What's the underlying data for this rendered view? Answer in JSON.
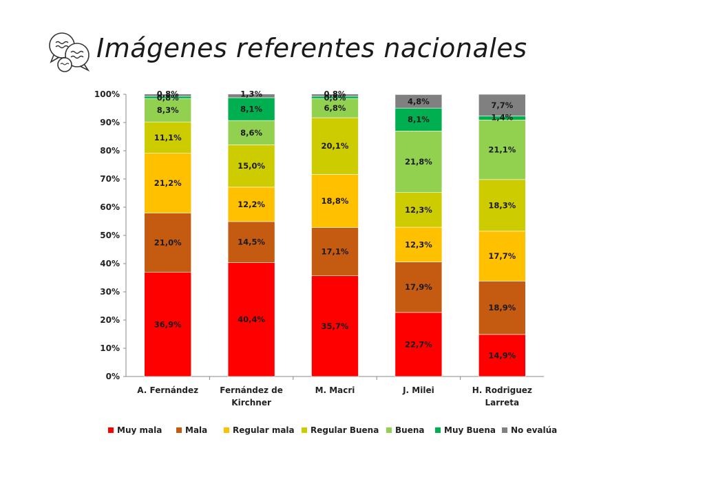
{
  "page": {
    "title": "Imágenes referentes nacionales",
    "logo_icon": "speech-bubbles-icon"
  },
  "chart_data": {
    "type": "bar",
    "stacked": true,
    "percent_stacked": true,
    "title": "",
    "xlabel": "",
    "ylabel": "",
    "ylim": [
      0,
      100
    ],
    "yticks": [
      "0%",
      "10%",
      "20%",
      "30%",
      "40%",
      "50%",
      "60%",
      "70%",
      "80%",
      "90%",
      "100%"
    ],
    "categories": [
      [
        "A. Fernández"
      ],
      [
        "Fernández de",
        "Kirchner"
      ],
      [
        "M. Macri"
      ],
      [
        "J. Milei"
      ],
      [
        "H. Rodriguez",
        "Larreta"
      ]
    ],
    "legend_position": "bottom",
    "grid": false,
    "series": [
      {
        "name": "Muy mala",
        "color": "#ff0000",
        "values": [
          36.9,
          40.4,
          35.7,
          22.7,
          14.9
        ],
        "labels": [
          "36,9%",
          "40,4%",
          "35,7%",
          "22,7%",
          "14,9%"
        ]
      },
      {
        "name": "Mala",
        "color": "#c55a11",
        "values": [
          21.0,
          14.5,
          17.1,
          17.9,
          18.9
        ],
        "labels": [
          "21,0%",
          "14,5%",
          "17,1%",
          "17,9%",
          "18,9%"
        ]
      },
      {
        "name": "Regular mala",
        "color": "#ffc000",
        "values": [
          21.2,
          12.2,
          18.8,
          12.3,
          17.7
        ],
        "labels": [
          "21,2%",
          "12,2%",
          "18,8%",
          "12,3%",
          "17,7%"
        ]
      },
      {
        "name": "Regular Buena",
        "color": "#cccc00",
        "values": [
          11.1,
          15.0,
          20.1,
          12.3,
          18.3
        ],
        "labels": [
          "11,1%",
          "15,0%",
          "20,1%",
          "12,3%",
          "18,3%"
        ]
      },
      {
        "name": "Buena",
        "color": "#92d050",
        "values": [
          8.3,
          8.6,
          6.8,
          21.8,
          21.1
        ],
        "labels": [
          "8,3%",
          "8,6%",
          "6,8%",
          "21,8%",
          "21,1%"
        ]
      },
      {
        "name": "Muy Buena",
        "color": "#00b050",
        "values": [
          0.8,
          8.1,
          0.8,
          8.1,
          1.4
        ],
        "labels": [
          "0,8%",
          "8,1%",
          "0,8%",
          "8,1%",
          "1,4%"
        ]
      },
      {
        "name": "No evalúa",
        "color": "#808080",
        "values": [
          0.8,
          1.3,
          0.8,
          4.8,
          7.7
        ],
        "labels": [
          "0,8%",
          "1,3%",
          "0,8%",
          "4,8%",
          "7,7%"
        ]
      }
    ]
  }
}
